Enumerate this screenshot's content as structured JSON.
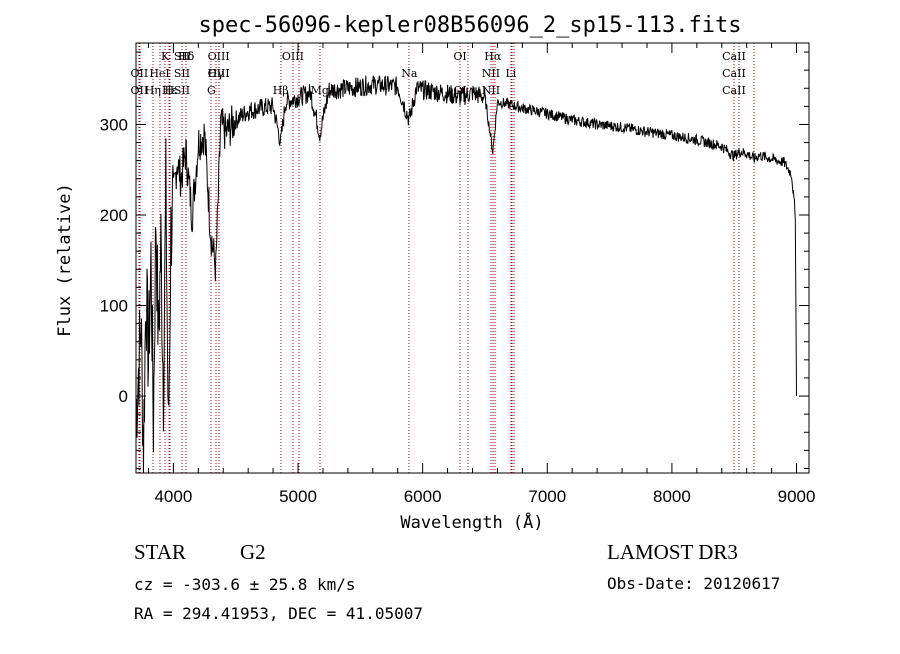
{
  "chart_data": {
    "type": "line",
    "title": "spec-56096-kepler08B56096_2_sp15-113.fits",
    "xlabel": "Wavelength (Å)",
    "ylabel": "Flux (relative)",
    "xlim": [
      3700,
      9100
    ],
    "ylim": [
      -85,
      390
    ],
    "xticks": [
      4000,
      5000,
      6000,
      7000,
      8000,
      9000
    ],
    "yticks": [
      0,
      100,
      200,
      300
    ],
    "series": [
      {
        "name": "flux",
        "x": [
          3700,
          3720,
          3740,
          3760,
          3780,
          3800,
          3820,
          3840,
          3860,
          3880,
          3900,
          3920,
          3940,
          3960,
          3980,
          4000,
          4030,
          4060,
          4100,
          4150,
          4200,
          4250,
          4300,
          4340,
          4380,
          4420,
          4500,
          4600,
          4700,
          4800,
          4861,
          4900,
          5000,
          5100,
          5175,
          5250,
          5400,
          5500,
          5600,
          5700,
          5800,
          5893,
          5950,
          6000,
          6100,
          6200,
          6300,
          6400,
          6500,
          6563,
          6600,
          6700,
          6800,
          6900,
          7000,
          7200,
          7400,
          7600,
          7800,
          8000,
          8200,
          8400,
          8498,
          8542,
          8600,
          8662,
          8700,
          8800,
          8900,
          8960,
          8990,
          9000
        ],
        "y": [
          -20,
          30,
          80,
          -60,
          120,
          40,
          150,
          -30,
          200,
          60,
          170,
          10,
          230,
          -50,
          180,
          220,
          260,
          240,
          270,
          200,
          280,
          290,
          180,
          140,
          300,
          290,
          305,
          315,
          318,
          320,
          280,
          325,
          330,
          335,
          290,
          338,
          340,
          342,
          344,
          343,
          342,
          305,
          340,
          338,
          336,
          334,
          330,
          335,
          330,
          270,
          325,
          322,
          318,
          315,
          312,
          305,
          300,
          297,
          292,
          288,
          283,
          276,
          265,
          270,
          268,
          262,
          266,
          262,
          258,
          245,
          200,
          0
        ]
      }
    ],
    "spectral_lines": [
      {
        "label": "Hδ",
        "x": 4102
      },
      {
        "label": "OII",
        "x": 3727
      },
      {
        "label": "OII",
        "x": 3729
      },
      {
        "label": "K",
        "x": 3934
      },
      {
        "label": "H",
        "x": 3968
      },
      {
        "label": "Hε",
        "x": 3970
      },
      {
        "label": "Hη",
        "x": 3835
      },
      {
        "label": "HeI",
        "x": 3889
      },
      {
        "label": "SII",
        "x": 4069
      },
      {
        "label": "OIII",
        "x": 4363
      },
      {
        "label": "Hγ",
        "x": 4340
      },
      {
        "label": "G",
        "x": 4305
      },
      {
        "label": "OIII",
        "x": 4959
      },
      {
        "label": "OIII",
        "x": 5007
      },
      {
        "label": "Hβ",
        "x": 4861
      },
      {
        "label": "Mg",
        "x": 5175
      },
      {
        "label": "Na",
        "x": 5893
      },
      {
        "label": "OI",
        "x": 6300
      },
      {
        "label": "OI",
        "x": 6364
      },
      {
        "label": "Hα",
        "x": 6563
      },
      {
        "label": "NII",
        "x": 6548
      },
      {
        "label": "NII",
        "x": 6584
      },
      {
        "label": "SII",
        "x": 6717
      },
      {
        "label": "SII",
        "x": 6731
      },
      {
        "label": "Li",
        "x": 6708
      },
      {
        "label": "CaII",
        "x": 8498
      },
      {
        "label": "CaII",
        "x": 8542
      },
      {
        "label": "CaII",
        "x": 8662
      }
    ],
    "line_label_tops": {
      "row1": [
        "Hδ",
        "K",
        "Hδ",
        "OIII",
        "OIII",
        "OI",
        "Hα",
        "SII",
        "CaII"
      ],
      "row2": [
        "OII",
        "HeI",
        "SII",
        "Hγ",
        "OIII",
        "Na",
        "NII",
        "Li",
        "CaII"
      ],
      "row3": [
        "OII",
        "Hε",
        "Hη",
        "H",
        "G",
        "Hβ",
        "Mg",
        "OI",
        "NII",
        "SII",
        "CaII"
      ]
    }
  },
  "footer": {
    "class": "STAR",
    "subclass": "G2",
    "survey": "LAMOST DR3",
    "cz": "cz = -303.6 ± 25.8 km/s",
    "obs_date": "Obs-Date: 20120617",
    "radec": "RA = 294.41953, DEC =  41.05007"
  },
  "colors": {
    "line_marker": "#b00000",
    "spectrum": "#000000"
  }
}
